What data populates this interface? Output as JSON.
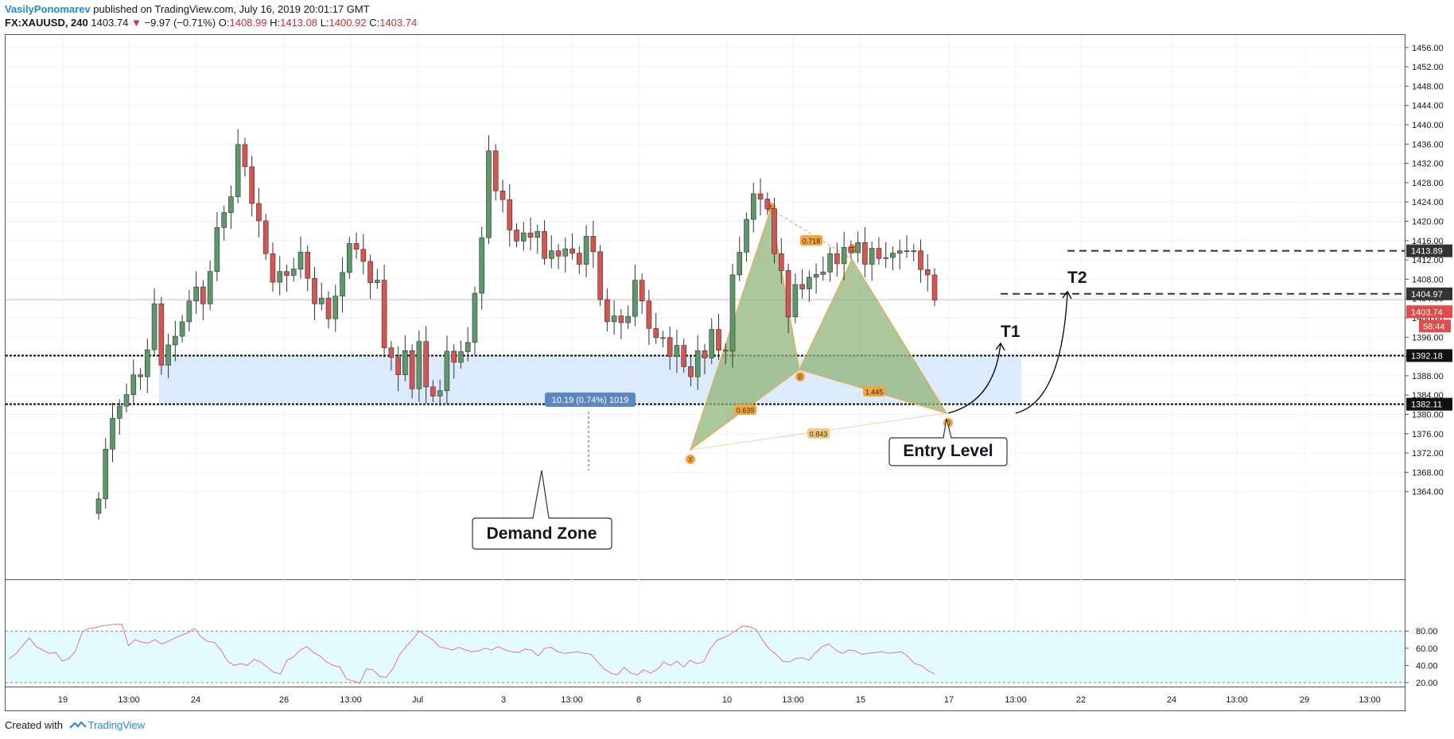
{
  "header": {
    "author": "VasilyPonomarev",
    "published_text": "published on TradingView.com, July 16, 2019 20:01:17 GMT",
    "symbol": "FX:XAUUSD, 240",
    "last": "1403.74",
    "change": "−9.97 (−0.71%)",
    "open_label": "O:",
    "open": "1408.99",
    "high_label": "H:",
    "high": "1413.08",
    "low_label": "L:",
    "low": "1400.92",
    "close_label": "C:",
    "close": "1403.74"
  },
  "footer": {
    "created_with": "Created with",
    "brand": "TradingView"
  },
  "colors": {
    "up": "#5b9a68",
    "down": "#d9534f",
    "pattern_fill": "#8fb57a",
    "pattern_stroke": "#f2a53a",
    "zone_fill": "#dbeafc",
    "rsi_fill": "#e2fbfd",
    "rsi_line": "#e86fa7"
  },
  "chart_data": {
    "type": "candlestick",
    "y_range": [
      1362,
      1460
    ],
    "y_ticks": [
      "1456.00",
      "1452.00",
      "1448.00",
      "1444.00",
      "1440.00",
      "1436.00",
      "1432.00",
      "1428.00",
      "1424.00",
      "1420.00",
      "1416.00",
      "1412.00",
      "1408.00",
      "1404.00",
      "1400.00",
      "1396.00",
      "1392.00",
      "1388.00",
      "1384.00",
      "1380.00",
      "1376.00",
      "1372.00",
      "1368.00",
      "1364.00"
    ],
    "x_ticks": [
      "19",
      "13:00",
      "24",
      "26",
      "13:00",
      "Jul",
      "3",
      "13:00",
      "8",
      "10",
      "13:00",
      "15",
      "17",
      "13:00",
      "22",
      "24",
      "13:00",
      "29",
      "13:00"
    ],
    "candles_close": [
      1362.5,
      1372.8,
      1379.2,
      1381.7,
      1384.1,
      1388.2,
      1387.8,
      1393.4,
      1402.9,
      1390.2,
      1394.4,
      1396.2,
      1399.2,
      1403.5,
      1406.4,
      1402.9,
      1409.6,
      1418.7,
      1421.8,
      1425.1,
      1435.9,
      1431.3,
      1423.7,
      1420.1,
      1413.3,
      1407.4,
      1409.6,
      1408.8,
      1410.1,
      1413.6,
      1408.2,
      1402.9,
      1404.1,
      1399.8,
      1404.5,
      1409.4,
      1415.4,
      1414.2,
      1411.7,
      1407.3,
      1407.8,
      1393.8,
      1391.8,
      1388.2,
      1393.2,
      1385.3,
      1395.1,
      1385.7,
      1383.8,
      1384.9,
      1393.1,
      1390.8,
      1393.0,
      1394.9,
      1405.1,
      1416.6,
      1434.6,
      1426.3,
      1424.5,
      1418.2,
      1415.9,
      1417.6,
      1416.7,
      1417.9,
      1412.3,
      1413.9,
      1412.8,
      1414.3,
      1413.4,
      1411.1,
      1416.9,
      1413.7,
      1403.8,
      1399.2,
      1400.4,
      1399.0,
      1400.3,
      1407.8,
      1403.5,
      1397.8,
      1395.9,
      1395.9,
      1392.0,
      1394.3,
      1389.9,
      1387.8,
      1393.2,
      1391.7,
      1397.6,
      1393.3,
      1393.1,
      1408.9,
      1413.6,
      1420.4,
      1425.7,
      1424.6,
      1422.6,
      1413.3,
      1409.8,
      1400.2,
      1406.9,
      1406.0,
      1408.4,
      1409.0,
      1409.5,
      1413.3,
      1411.2,
      1414.6,
      1413.5,
      1415.6,
      1411.1,
      1414.4,
      1412.3,
      1412.5,
      1413.4,
      1413.9,
      1413.7,
      1413.9,
      1410.0,
      1408.9,
      1403.7
    ],
    "rsi": {
      "levels": [
        "80.00",
        "60.00",
        "40.00",
        "20.00"
      ],
      "overbought": 80,
      "oversold": 20,
      "values": [
        48,
        54,
        63,
        72,
        62,
        58,
        54,
        55,
        45,
        48,
        57,
        79,
        83,
        84,
        86,
        87,
        88,
        88,
        63,
        70,
        67,
        66,
        70,
        65,
        68,
        72,
        75,
        78,
        83,
        73,
        68,
        67,
        58,
        45,
        40,
        42,
        40,
        47,
        44,
        38,
        32,
        30,
        46,
        50,
        58,
        62,
        55,
        51,
        44,
        40,
        38,
        24,
        22,
        19,
        36,
        35,
        27,
        26,
        36,
        52,
        62,
        70,
        80,
        75,
        70,
        62,
        60,
        58,
        61,
        58,
        56,
        57,
        60,
        58,
        62,
        58,
        56,
        55,
        59,
        58,
        51,
        60,
        61,
        56,
        54,
        55,
        56,
        54,
        53,
        44,
        36,
        31,
        29,
        38,
        31,
        29,
        35,
        31,
        35,
        44,
        40,
        45,
        38,
        46,
        42,
        44,
        59,
        69,
        72,
        76,
        81,
        86,
        85,
        82,
        69,
        59,
        53,
        45,
        44,
        48,
        49,
        46,
        55,
        62,
        65,
        58,
        54,
        58,
        57,
        53,
        54,
        55,
        56,
        54,
        55,
        56,
        50,
        42,
        40,
        34,
        30
      ]
    },
    "zone": {
      "label": "Demand Zone",
      "top": 1392.18,
      "bottom": 1382.11
    },
    "price_labels": {
      "t2": "1413.89",
      "t1": "1404.97",
      "last": "1403.74",
      "countdown": "58:44",
      "zone_top": "1392.18",
      "zone_bottom": "1382.11"
    },
    "measure_label": "10.19 (0.74%) 1019",
    "pattern": {
      "points": [
        "X",
        "A",
        "B",
        "C",
        "D"
      ],
      "ratios": [
        "0.718",
        "0.639",
        "1.445",
        "0.843"
      ]
    },
    "targets": [
      "T1",
      "T2"
    ],
    "entry_label": "Entry Level",
    "last_price_line": 1403.74
  }
}
